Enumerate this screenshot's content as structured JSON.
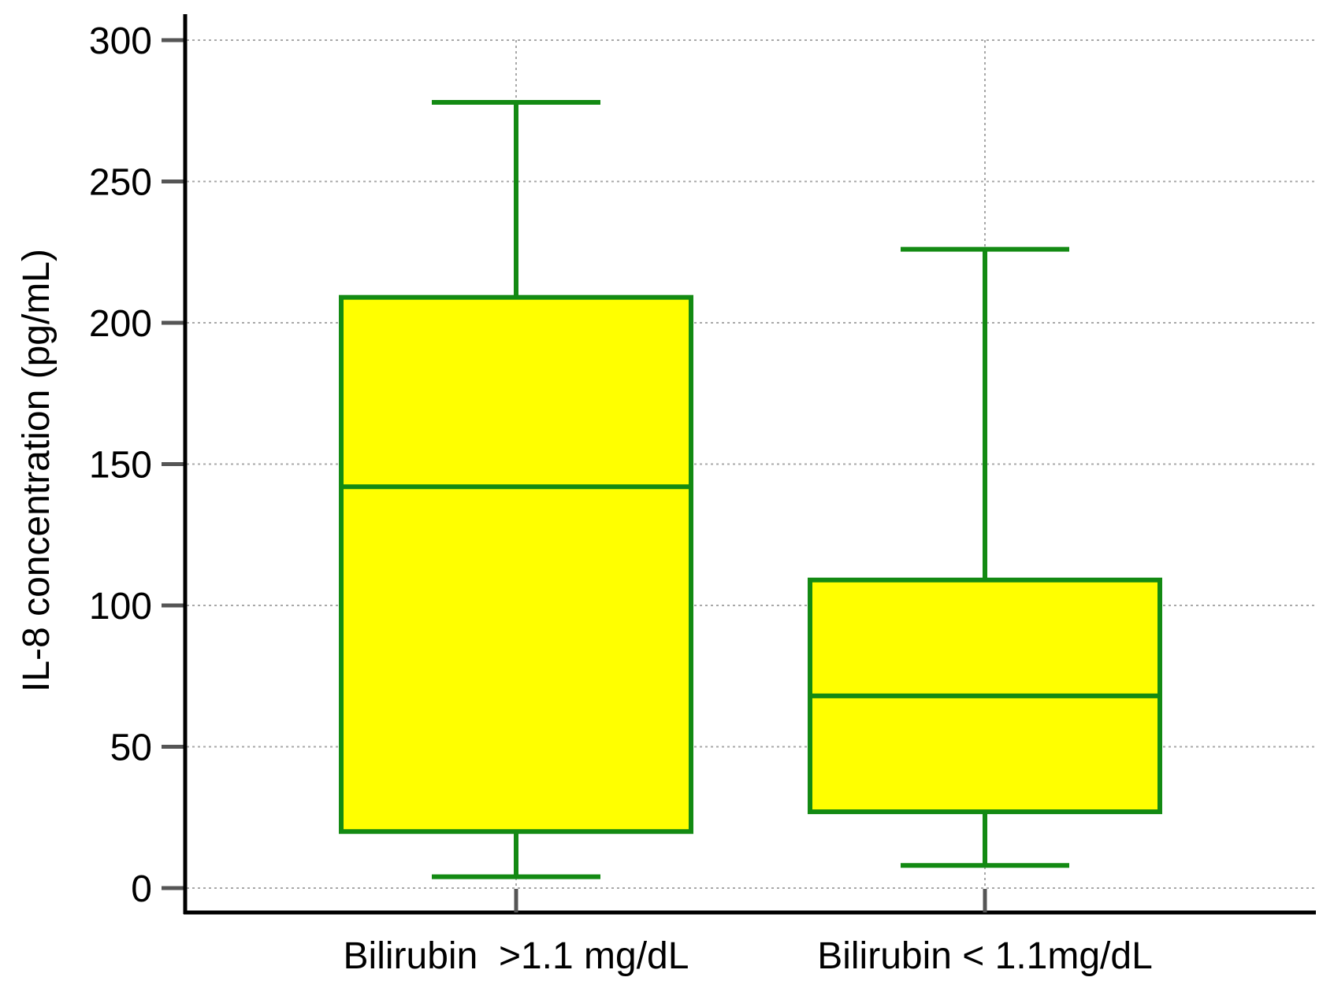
{
  "chart_data": {
    "type": "box",
    "xlabel": "",
    "ylabel": "IL-8 concentration (pg/mL)",
    "ylim": [
      0,
      300
    ],
    "yticks": [
      0,
      50,
      100,
      150,
      200,
      250,
      300
    ],
    "grid": true,
    "categories": [
      "Bilirubin  >1.1 mg/dL",
      "Bilirubin < 1.1mg/dL"
    ],
    "boxes": [
      {
        "category": "Bilirubin  >1.1 mg/dL",
        "whisker_low": 4,
        "q1": 20,
        "median": 142,
        "q3": 209,
        "whisker_high": 278
      },
      {
        "category": "Bilirubin < 1.1mg/dL",
        "whisker_low": 8,
        "q1": 27,
        "median": 68,
        "q3": 109,
        "whisker_high": 226
      }
    ],
    "colors": {
      "box_fill": "#ffff00",
      "box_stroke": "#138a13",
      "grid": "#a8a8a8",
      "axis": "#000000",
      "category_tick": "#555555"
    }
  }
}
